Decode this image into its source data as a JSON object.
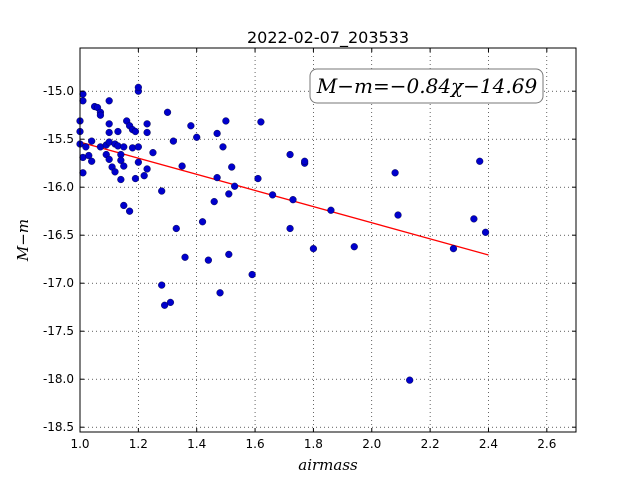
{
  "chart_data": {
    "type": "scatter",
    "title": "2022-02-07_203533",
    "xlabel": "airmass",
    "ylabel": "M−m",
    "xlim": [
      1.0,
      2.7
    ],
    "ylim": [
      -18.55,
      -14.55
    ],
    "y_inverted": true,
    "grid": true,
    "x_ticks": [
      "1.0",
      "1.2",
      "1.4",
      "1.6",
      "1.8",
      "2.0",
      "2.2",
      "2.4",
      "2.6"
    ],
    "y_ticks": [
      "-15.0",
      "-15.5",
      "-16.0",
      "-16.5",
      "-17.0",
      "-17.5",
      "-18.0",
      "-18.5"
    ],
    "annotation": "M−m=−0.84χ−14.69",
    "fit": {
      "slope": -0.84,
      "intercept": -14.69,
      "x_range": [
        1.0,
        2.4
      ],
      "color": "#ff0000"
    },
    "marker_color": "#0000cc",
    "points": [
      [
        1.0,
        -15.31
      ],
      [
        1.0,
        -15.42
      ],
      [
        1.0,
        -15.55
      ],
      [
        1.01,
        -15.69
      ],
      [
        1.01,
        -15.85
      ],
      [
        1.01,
        -15.1
      ],
      [
        1.01,
        -15.03
      ],
      [
        1.02,
        -15.58
      ],
      [
        1.03,
        -15.67
      ],
      [
        1.04,
        -15.52
      ],
      [
        1.04,
        -15.73
      ],
      [
        1.05,
        -15.16
      ],
      [
        1.06,
        -15.17
      ],
      [
        1.07,
        -15.22
      ],
      [
        1.07,
        -15.25
      ],
      [
        1.07,
        -15.58
      ],
      [
        1.09,
        -15.56
      ],
      [
        1.09,
        -15.66
      ],
      [
        1.1,
        -15.34
      ],
      [
        1.1,
        -15.43
      ],
      [
        1.1,
        -15.53
      ],
      [
        1.1,
        -15.71
      ],
      [
        1.1,
        -15.1
      ],
      [
        1.11,
        -15.79
      ],
      [
        1.12,
        -15.55
      ],
      [
        1.12,
        -15.84
      ],
      [
        1.13,
        -15.42
      ],
      [
        1.13,
        -15.57
      ],
      [
        1.14,
        -15.66
      ],
      [
        1.14,
        -15.72
      ],
      [
        1.14,
        -15.92
      ],
      [
        1.15,
        -15.58
      ],
      [
        1.15,
        -15.78
      ],
      [
        1.15,
        -16.19
      ],
      [
        1.16,
        -15.31
      ],
      [
        1.17,
        -15.36
      ],
      [
        1.17,
        -16.25
      ],
      [
        1.18,
        -15.4
      ],
      [
        1.18,
        -15.59
      ],
      [
        1.19,
        -15.42
      ],
      [
        1.19,
        -15.91
      ],
      [
        1.2,
        -15.58
      ],
      [
        1.2,
        -15.74
      ],
      [
        1.2,
        -15.0
      ],
      [
        1.2,
        -14.96
      ],
      [
        1.22,
        -15.88
      ],
      [
        1.23,
        -15.34
      ],
      [
        1.23,
        -15.43
      ],
      [
        1.23,
        -15.81
      ],
      [
        1.25,
        -15.64
      ],
      [
        1.28,
        -16.04
      ],
      [
        1.28,
        -17.02
      ],
      [
        1.29,
        -17.23
      ],
      [
        1.3,
        -15.22
      ],
      [
        1.31,
        -17.2
      ],
      [
        1.32,
        -15.52
      ],
      [
        1.33,
        -16.43
      ],
      [
        1.35,
        -15.78
      ],
      [
        1.36,
        -16.73
      ],
      [
        1.38,
        -15.36
      ],
      [
        1.4,
        -15.48
      ],
      [
        1.42,
        -16.36
      ],
      [
        1.44,
        -16.76
      ],
      [
        1.46,
        -16.15
      ],
      [
        1.47,
        -15.44
      ],
      [
        1.47,
        -15.9
      ],
      [
        1.48,
        -17.1
      ],
      [
        1.49,
        -15.58
      ],
      [
        1.5,
        -15.31
      ],
      [
        1.51,
        -16.7
      ],
      [
        1.51,
        -16.07
      ],
      [
        1.52,
        -15.79
      ],
      [
        1.53,
        -15.99
      ],
      [
        1.59,
        -16.91
      ],
      [
        1.61,
        -15.91
      ],
      [
        1.62,
        -15.32
      ],
      [
        1.66,
        -16.08
      ],
      [
        1.72,
        -16.43
      ],
      [
        1.72,
        -15.66
      ],
      [
        1.73,
        -16.13
      ],
      [
        1.77,
        -15.75
      ],
      [
        1.77,
        -15.73
      ],
      [
        1.8,
        -16.64
      ],
      [
        1.86,
        -16.24
      ],
      [
        1.94,
        -16.62
      ],
      [
        2.08,
        -15.85
      ],
      [
        2.09,
        -16.29
      ],
      [
        2.13,
        -18.01
      ],
      [
        2.28,
        -16.64
      ],
      [
        2.35,
        -16.33
      ],
      [
        2.37,
        -15.73
      ],
      [
        2.39,
        -16.47
      ]
    ]
  }
}
